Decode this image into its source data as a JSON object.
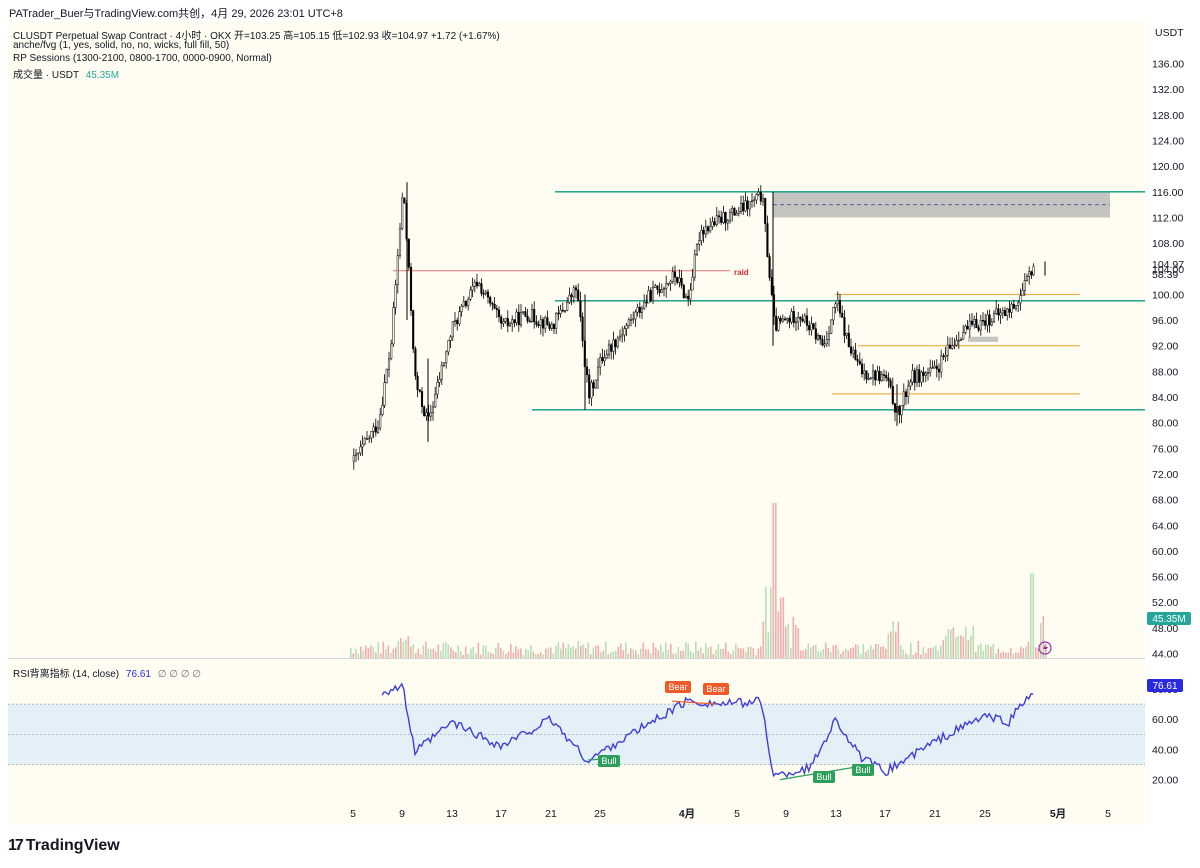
{
  "header": {
    "title": "PATrader_Buer与TradingView.com共创，4月 29, 2026 23:01 UTC+8"
  },
  "legend": {
    "symbol_line": "CLUSDT Perpetual Swap Contract · 4小时 · OKX  开=103.25  高=105.15  低=102.93  收=104.97  +1.72 (+1.67%)",
    "indicator1": "anche/fvg (1, yes, solid, no, no, wicks, full fill, 50)",
    "indicator2": "RP Sessions (1300-2100, 0800-1700, 0000-0900, Normal)",
    "volume_label": "成交量 · USDT",
    "volume_value": "45.35M",
    "rsi_label": "RSI背离指标 (14, close)",
    "rsi_value": "76.61",
    "rsi_na": "∅ ∅ ∅ ∅"
  },
  "price_axis": {
    "currency": "USDT",
    "ticks": [
      "136.00",
      "132.00",
      "128.00",
      "124.00",
      "120.00",
      "116.00",
      "112.00",
      "108.00",
      "104.00",
      "100.00",
      "96.00",
      "92.00",
      "88.00",
      "84.00",
      "80.00",
      "76.00",
      "72.00",
      "68.00",
      "64.00",
      "60.00",
      "56.00",
      "52.00",
      "48.00",
      "44.00"
    ],
    "last_price": "104.97",
    "countdown": "58:39",
    "volume_badge": "45.35M"
  },
  "rsi_axis": {
    "ticks": [
      "80.00",
      "60.00",
      "40.00",
      "20.00"
    ],
    "badge": "76.61"
  },
  "time_axis": {
    "labels": [
      "5",
      "9",
      "13",
      "17",
      "21",
      "25",
      "4月",
      "5",
      "9",
      "13",
      "17",
      "21",
      "25",
      "5月",
      "5"
    ]
  },
  "annotations": {
    "raid": "raid",
    "bear1": "Bear",
    "bear2": "Bear",
    "bull1": "Bull",
    "bull2": "Bull",
    "bull3": "Bull"
  },
  "footer": {
    "brand": "TradingView"
  },
  "colors": {
    "bull_candle": "#ffffff",
    "bear_candle": "#000000",
    "green_level": "#089981",
    "orange_level": "#f0a030",
    "raid_line": "#e57373",
    "rsi_line": "#3f3fd8",
    "rsi_band": "#e3f0f8",
    "volume_up": "#a5d6a7",
    "volume_down": "#ef9a9a",
    "fvg_box": "#b0b0b0"
  },
  "chart_data": {
    "type": "candlestick",
    "instrument": "CLUSDT Perpetual Swap Contract",
    "timeframe": "4小时",
    "exchange": "OKX",
    "last": {
      "open": 103.25,
      "high": 105.15,
      "low": 102.93,
      "close": 104.97,
      "change": 1.72,
      "change_pct": 1.67
    },
    "price_ylim": [
      44,
      138
    ],
    "close_path": [
      {
        "x": "5",
        "close": 74.0
      },
      {
        "x": "7",
        "close": 80.0
      },
      {
        "x": "8",
        "close": 92.0
      },
      {
        "x": "9",
        "close": 117.0
      },
      {
        "x": "10",
        "close": 86.0
      },
      {
        "x": "11",
        "close": 80.0
      },
      {
        "x": "13",
        "close": 95.0
      },
      {
        "x": "15",
        "close": 102.0
      },
      {
        "x": "17",
        "close": 95.0
      },
      {
        "x": "19",
        "close": 97.0
      },
      {
        "x": "21",
        "close": 95.0
      },
      {
        "x": "23",
        "close": 101.0
      },
      {
        "x": "24",
        "close": 84.0
      },
      {
        "x": "25",
        "close": 90.0
      },
      {
        "x": "27",
        "close": 95.0
      },
      {
        "x": "29",
        "close": 100.0
      },
      {
        "x": "31",
        "close": 103.0
      },
      {
        "x": "4月 1",
        "close": 99.0
      },
      {
        "x": "2",
        "close": 110.0
      },
      {
        "x": "4",
        "close": 112.0
      },
      {
        "x": "6",
        "close": 114.0
      },
      {
        "x": "7",
        "close": 115.5
      },
      {
        "x": "8",
        "close": 95.0
      },
      {
        "x": "10",
        "close": 97.0
      },
      {
        "x": "12",
        "close": 92.0
      },
      {
        "x": "13",
        "close": 99.0
      },
      {
        "x": "14",
        "close": 92.0
      },
      {
        "x": "15",
        "close": 88.0
      },
      {
        "x": "17",
        "close": 87.0
      },
      {
        "x": "18",
        "close": 81.0
      },
      {
        "x": "19",
        "close": 87.0
      },
      {
        "x": "21",
        "close": 88.0
      },
      {
        "x": "23",
        "close": 94.0
      },
      {
        "x": "25",
        "close": 96.0
      },
      {
        "x": "27",
        "close": 97.5
      },
      {
        "x": "28",
        "close": 100.0
      },
      {
        "x": "29",
        "close": 104.97
      }
    ],
    "levels": [
      {
        "name": "upper-green",
        "price": 116.0
      },
      {
        "name": "mid-green",
        "price": 99.0
      },
      {
        "name": "lower-green",
        "price": 82.0
      },
      {
        "name": "raid",
        "price": 103.7
      },
      {
        "name": "orange-1",
        "price": 100.0
      },
      {
        "name": "orange-2",
        "price": 92.0
      },
      {
        "name": "orange-3",
        "price": 84.5
      }
    ],
    "fvg_zone": {
      "top": 116.0,
      "bottom": 112.0,
      "mid": 114.0
    },
    "volume_last_musdt": 45.35,
    "rsi": {
      "period": 14,
      "last": 76.61,
      "ylim": [
        10,
        90
      ],
      "bands": [
        70,
        50,
        30
      ],
      "values": [
        {
          "x": "5",
          "rsi": 72
        },
        {
          "x": "9",
          "rsi": 82
        },
        {
          "x": "10",
          "rsi": 38
        },
        {
          "x": "13",
          "rsi": 58
        },
        {
          "x": "17",
          "rsi": 42
        },
        {
          "x": "21",
          "rsi": 60
        },
        {
          "x": "24",
          "rsi": 32
        },
        {
          "x": "25",
          "rsi": 38
        },
        {
          "x": "4月 1",
          "rsi": 72
        },
        {
          "x": "4",
          "rsi": 70
        },
        {
          "x": "7",
          "rsi": 72
        },
        {
          "x": "8",
          "rsi": 22
        },
        {
          "x": "11",
          "rsi": 28
        },
        {
          "x": "13",
          "rsi": 60
        },
        {
          "x": "15",
          "rsi": 35
        },
        {
          "x": "17",
          "rsi": 25
        },
        {
          "x": "21",
          "rsi": 45
        },
        {
          "x": "25",
          "rsi": 62
        },
        {
          "x": "27",
          "rsi": 58
        },
        {
          "x": "28",
          "rsi": 70
        },
        {
          "x": "29",
          "rsi": 76.61
        }
      ]
    }
  }
}
